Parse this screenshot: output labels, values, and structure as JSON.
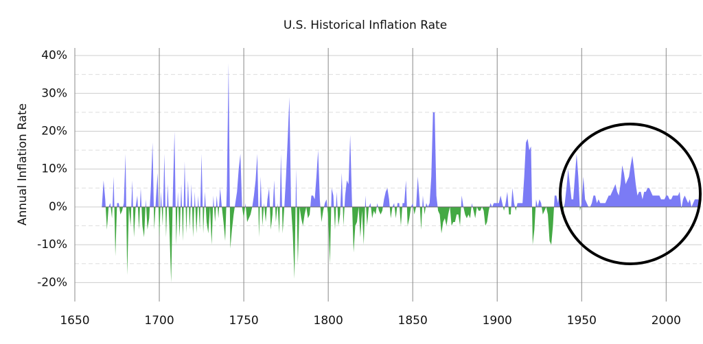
{
  "chart_data": {
    "type": "area",
    "title": "U.S. Historical Inflation Rate",
    "y_label": "Annual Inflation Rate",
    "positive_color": "#7b7bf5",
    "negative_color": "#44a944",
    "grid": true,
    "xlim": [
      1650,
      2021
    ],
    "xticks": [
      1650,
      1700,
      1750,
      1800,
      1850,
      1900,
      1950,
      2000
    ],
    "ylim": [
      -25,
      42
    ],
    "yticks": [
      {
        "value": -20,
        "label": "-20%"
      },
      {
        "value": -10,
        "label": "-10%"
      },
      {
        "value": 0,
        "label": "0%"
      },
      {
        "value": 10,
        "label": "10%"
      },
      {
        "value": 20,
        "label": "20%"
      },
      {
        "value": 30,
        "label": "30%"
      },
      {
        "value": 40,
        "label": "40%"
      }
    ],
    "yminorticks": [
      -15,
      -5,
      5,
      15,
      25,
      35
    ],
    "x": [
      1666,
      1667,
      1668,
      1669,
      1670,
      1671,
      1672,
      1673,
      1674,
      1675,
      1676,
      1677,
      1678,
      1679,
      1680,
      1681,
      1682,
      1683,
      1684,
      1685,
      1686,
      1687,
      1688,
      1689,
      1690,
      1691,
      1692,
      1693,
      1694,
      1695,
      1696,
      1697,
      1698,
      1699,
      1700,
      1701,
      1702,
      1703,
      1704,
      1705,
      1706,
      1707,
      1708,
      1709,
      1710,
      1711,
      1712,
      1713,
      1714,
      1715,
      1716,
      1717,
      1718,
      1719,
      1720,
      1721,
      1722,
      1723,
      1724,
      1725,
      1726,
      1727,
      1728,
      1729,
      1730,
      1731,
      1732,
      1733,
      1734,
      1735,
      1736,
      1737,
      1738,
      1739,
      1740,
      1741,
      1742,
      1743,
      1744,
      1745,
      1746,
      1747,
      1748,
      1749,
      1750,
      1751,
      1752,
      1753,
      1754,
      1755,
      1756,
      1757,
      1758,
      1759,
      1760,
      1761,
      1762,
      1763,
      1764,
      1765,
      1766,
      1767,
      1768,
      1769,
      1770,
      1771,
      1772,
      1773,
      1774,
      1775,
      1776,
      1777,
      1778,
      1779,
      1780,
      1781,
      1782,
      1783,
      1784,
      1785,
      1786,
      1787,
      1788,
      1789,
      1790,
      1791,
      1792,
      1793,
      1794,
      1795,
      1796,
      1797,
      1798,
      1799,
      1800,
      1801,
      1802,
      1803,
      1804,
      1805,
      1806,
      1807,
      1808,
      1809,
      1810,
      1811,
      1812,
      1813,
      1814,
      1815,
      1816,
      1817,
      1818,
      1819,
      1820,
      1821,
      1822,
      1823,
      1824,
      1825,
      1826,
      1827,
      1828,
      1829,
      1830,
      1831,
      1832,
      1833,
      1834,
      1835,
      1836,
      1837,
      1838,
      1839,
      1840,
      1841,
      1842,
      1843,
      1844,
      1845,
      1846,
      1847,
      1848,
      1849,
      1850,
      1851,
      1852,
      1853,
      1854,
      1855,
      1856,
      1857,
      1858,
      1859,
      1860,
      1861,
      1862,
      1863,
      1864,
      1865,
      1866,
      1867,
      1868,
      1869,
      1870,
      1871,
      1872,
      1873,
      1874,
      1875,
      1876,
      1877,
      1878,
      1879,
      1880,
      1881,
      1882,
      1883,
      1884,
      1885,
      1886,
      1887,
      1888,
      1889,
      1890,
      1891,
      1892,
      1893,
      1894,
      1895,
      1896,
      1897,
      1898,
      1899,
      1900,
      1901,
      1902,
      1903,
      1904,
      1905,
      1906,
      1907,
      1908,
      1909,
      1910,
      1911,
      1912,
      1913,
      1914,
      1915,
      1916,
      1917,
      1918,
      1919,
      1920,
      1921,
      1922,
      1923,
      1924,
      1925,
      1926,
      1927,
      1928,
      1929,
      1930,
      1931,
      1932,
      1933,
      1934,
      1935,
      1936,
      1937,
      1938,
      1939,
      1940,
      1941,
      1942,
      1943,
      1944,
      1945,
      1946,
      1947,
      1948,
      1949,
      1950,
      1951,
      1952,
      1953,
      1954,
      1955,
      1956,
      1957,
      1958,
      1959,
      1960,
      1961,
      1962,
      1963,
      1964,
      1965,
      1966,
      1967,
      1968,
      1969,
      1970,
      1971,
      1972,
      1973,
      1974,
      1975,
      1976,
      1977,
      1978,
      1979,
      1980,
      1981,
      1982,
      1983,
      1984,
      1985,
      1986,
      1987,
      1988,
      1989,
      1990,
      1991,
      1992,
      1993,
      1994,
      1995,
      1996,
      1997,
      1998,
      1999,
      2000,
      2001,
      2002,
      2003,
      2004,
      2005,
      2006,
      2007,
      2008,
      2009,
      2010,
      2011,
      2012,
      2013,
      2014,
      2015,
      2016,
      2017,
      2018,
      2019,
      2020
    ],
    "values": [
      0,
      7,
      2,
      -6,
      0,
      1,
      -3,
      8,
      -13,
      1,
      1,
      -2,
      -1,
      1,
      14,
      -18,
      0,
      -5,
      7,
      -8,
      0,
      3,
      -6,
      5,
      -5,
      -8,
      2,
      -6,
      -3,
      5,
      17,
      -6,
      2,
      9,
      -8,
      4,
      -5,
      14,
      -8,
      6,
      -6,
      -20,
      3,
      20,
      -10,
      4,
      -8,
      6,
      -9,
      12,
      -7,
      7,
      -6,
      6,
      -8,
      4,
      -7,
      3,
      -6,
      14,
      -7,
      4,
      -4,
      -7,
      0,
      -10,
      3,
      -4,
      3,
      -3,
      5,
      0,
      -4,
      -9,
      5,
      38,
      -11,
      -6,
      -2,
      1,
      4,
      10,
      14,
      0,
      -3,
      1,
      -4,
      -3,
      -2,
      0,
      3,
      7,
      14,
      -8,
      8,
      -5,
      1,
      -4,
      2,
      5,
      -6,
      -2,
      7,
      -4,
      1,
      -7,
      14,
      -7,
      0,
      8,
      18,
      29,
      0,
      -7,
      -19,
      10,
      -15,
      0,
      -3,
      -5,
      -2,
      0,
      -3,
      -2,
      3,
      3,
      2,
      8,
      15,
      2,
      -4,
      -1,
      1,
      2,
      -3,
      -15,
      5,
      3,
      -6,
      4,
      -5,
      -2,
      9,
      -5,
      3,
      7,
      6,
      19,
      2,
      -12,
      -5,
      -4,
      0,
      -8,
      -1,
      -10,
      3,
      -5,
      0,
      1,
      -3,
      -1,
      -2,
      1,
      -1,
      -2,
      -1,
      2,
      4,
      5,
      2,
      -3,
      0,
      1,
      -3,
      1,
      1,
      -5,
      1,
      1,
      7,
      -5,
      -3,
      0,
      1,
      -2,
      0,
      8,
      2,
      -6,
      3,
      -2,
      1,
      0,
      1,
      8,
      25,
      25,
      3,
      -1,
      -2,
      -7,
      -4,
      -3,
      -5,
      -2,
      0,
      -5,
      -4,
      -4,
      -2,
      -2,
      -5,
      3,
      0,
      -2,
      -3,
      -2,
      -3,
      1,
      -1,
      -3,
      0,
      -1,
      -1,
      0,
      -1,
      -5,
      -4,
      -1,
      1,
      0,
      1,
      1,
      1,
      1,
      3,
      1,
      -1,
      1,
      4,
      -2,
      -2,
      5,
      1,
      -1,
      1,
      1,
      1,
      1,
      8,
      17,
      18,
      15,
      16,
      -10,
      -6,
      2,
      0,
      2,
      1,
      -2,
      -1,
      0,
      -2,
      -9,
      -10,
      -5,
      3,
      3,
      1,
      4,
      -2,
      -1,
      1,
      5,
      10,
      6,
      2,
      2,
      8,
      14,
      8,
      -1,
      1,
      8,
      2,
      1,
      0,
      0,
      1,
      3,
      3,
      1,
      2,
      1,
      1,
      1,
      1,
      2,
      3,
      3,
      4,
      5,
      6,
      4,
      3,
      6,
      11,
      9,
      6,
      7,
      8,
      11,
      13.5,
      10,
      6,
      3,
      4,
      4,
      2,
      4,
      4,
      5,
      5,
      4,
      3,
      3,
      3,
      3,
      3,
      2,
      2,
      2,
      3,
      3,
      2,
      2,
      3,
      3,
      3,
      3,
      4,
      -0.4,
      2,
      3,
      2,
      1,
      2,
      0,
      1,
      2,
      2,
      2,
      1
    ]
  }
}
